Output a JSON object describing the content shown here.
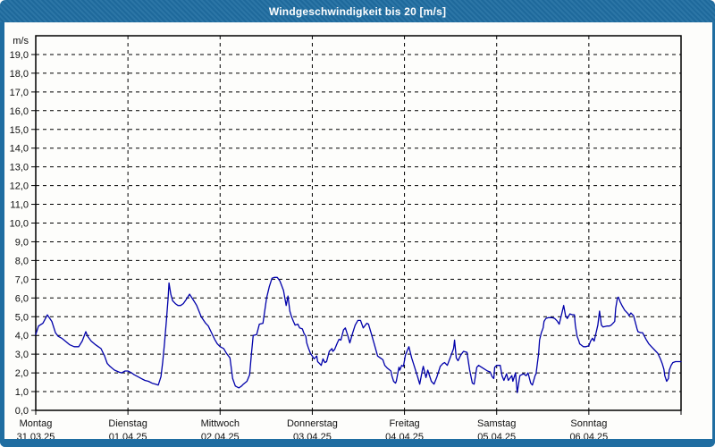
{
  "window": {
    "title": "Windgeschwindigkeit bis 20 [m/s]"
  },
  "colors": {
    "frame_blue": "#1f6da1",
    "line_blue": "#0000aa",
    "grid_black": "#000000",
    "plot_background": "#fdfdfb",
    "title_text": "#ffffff"
  },
  "y_axis": {
    "unit_label": "m/s",
    "tick_labels": [
      "19,0",
      "18,0",
      "17,0",
      "16,0",
      "15,0",
      "14,0",
      "13,0",
      "12,0",
      "11,0",
      "10,0",
      "9,0",
      "8,0",
      "7,0",
      "6,0",
      "5,0",
      "4,0",
      "3,0",
      "2,0",
      "1,0",
      "0,0"
    ]
  },
  "x_axis": {
    "days": [
      {
        "name": "Montag",
        "date": "31.03.25"
      },
      {
        "name": "Dienstag",
        "date": "01.04.25"
      },
      {
        "name": "Mittwoch",
        "date": "02.04.25"
      },
      {
        "name": "Donnerstag",
        "date": "03.04.25"
      },
      {
        "name": "Freitag",
        "date": "04.04.25"
      },
      {
        "name": "Samstag",
        "date": "05.04.25"
      },
      {
        "name": "Sonntag",
        "date": "06.04.25"
      }
    ]
  },
  "chart_data": {
    "type": "line",
    "title": "Windgeschwindigkeit bis 20 [m/s]",
    "xlabel": "",
    "ylabel": "m/s",
    "ylim": [
      0,
      20
    ],
    "y_gridline_step": 1,
    "xlim_days": [
      0,
      7
    ],
    "x_unit": "days since 31.03.25 00:00 (Montag)",
    "grid": "dashed",
    "legend": "none",
    "series": [
      {
        "name": "Windgeschwindigkeit",
        "color": "#0000aa",
        "points": [
          [
            0,
            4.05
          ],
          [
            0.03,
            4.5
          ],
          [
            0.078,
            4.65
          ],
          [
            0.126,
            5.1
          ],
          [
            0.175,
            4.75
          ],
          [
            0.213,
            4.15
          ],
          [
            0.243,
            3.95
          ],
          [
            0.281,
            3.85
          ],
          [
            0.32,
            3.7
          ],
          [
            0.369,
            3.5
          ],
          [
            0.417,
            3.4
          ],
          [
            0.466,
            3.4
          ],
          [
            0.504,
            3.7
          ],
          [
            0.543,
            4.2
          ],
          [
            0.563,
            3.95
          ],
          [
            0.601,
            3.7
          ],
          [
            0.65,
            3.5
          ],
          [
            0.679,
            3.4
          ],
          [
            0.708,
            3.3
          ],
          [
            0.747,
            2.9
          ],
          [
            0.776,
            2.5
          ],
          [
            0.805,
            2.35
          ],
          [
            0.854,
            2.15
          ],
          [
            0.902,
            2.05
          ],
          [
            0.931,
            2.0
          ],
          [
            0.97,
            2.1
          ],
          [
            1.0,
            2.1
          ],
          [
            1.039,
            2.0
          ],
          [
            1.068,
            1.9
          ],
          [
            1.107,
            1.8
          ],
          [
            1.145,
            1.7
          ],
          [
            1.184,
            1.6
          ],
          [
            1.223,
            1.55
          ],
          [
            1.261,
            1.45
          ],
          [
            1.3,
            1.4
          ],
          [
            1.329,
            1.35
          ],
          [
            1.358,
            1.8
          ],
          [
            1.378,
            2.6
          ],
          [
            1.397,
            3.6
          ],
          [
            1.417,
            4.8
          ],
          [
            1.436,
            6.0
          ],
          [
            1.446,
            6.8
          ],
          [
            1.465,
            6.2
          ],
          [
            1.485,
            5.85
          ],
          [
            1.514,
            5.7
          ],
          [
            1.543,
            5.6
          ],
          [
            1.572,
            5.6
          ],
          [
            1.601,
            5.7
          ],
          [
            1.63,
            5.9
          ],
          [
            1.669,
            6.2
          ],
          [
            1.708,
            5.9
          ],
          [
            1.746,
            5.6
          ],
          [
            1.795,
            5.0
          ],
          [
            1.843,
            4.65
          ],
          [
            1.872,
            4.5
          ],
          [
            1.901,
            4.2
          ],
          [
            1.94,
            3.8
          ],
          [
            1.969,
            3.55
          ],
          [
            2.0,
            3.4
          ],
          [
            2.039,
            3.3
          ],
          [
            2.068,
            3.05
          ],
          [
            2.107,
            2.8
          ],
          [
            2.136,
            1.7
          ],
          [
            2.165,
            1.3
          ],
          [
            2.204,
            1.2
          ],
          [
            2.233,
            1.3
          ],
          [
            2.252,
            1.4
          ],
          [
            2.291,
            1.55
          ],
          [
            2.32,
            1.9
          ],
          [
            2.339,
            3.0
          ],
          [
            2.359,
            4.0
          ],
          [
            2.397,
            4.05
          ],
          [
            2.426,
            4.6
          ],
          [
            2.465,
            4.65
          ],
          [
            2.504,
            6.0
          ],
          [
            2.533,
            6.6
          ],
          [
            2.562,
            7.05
          ],
          [
            2.591,
            7.1
          ],
          [
            2.62,
            7.1
          ],
          [
            2.649,
            6.9
          ],
          [
            2.688,
            6.4
          ],
          [
            2.717,
            5.6
          ],
          [
            2.736,
            6.1
          ],
          [
            2.756,
            5.3
          ],
          [
            2.775,
            5.0
          ],
          [
            2.795,
            4.75
          ],
          [
            2.814,
            4.55
          ],
          [
            2.843,
            4.6
          ],
          [
            2.863,
            4.4
          ],
          [
            2.892,
            4.35
          ],
          [
            2.911,
            4.1
          ],
          [
            2.93,
            3.95
          ],
          [
            2.94,
            3.6
          ],
          [
            2.96,
            3.3
          ],
          [
            2.979,
            3.05
          ],
          [
            3.0,
            2.9
          ],
          [
            3.019,
            2.75
          ],
          [
            3.048,
            2.9
          ],
          [
            3.058,
            2.6
          ],
          [
            3.078,
            2.5
          ],
          [
            3.097,
            2.4
          ],
          [
            3.116,
            2.75
          ],
          [
            3.136,
            2.55
          ],
          [
            3.155,
            2.6
          ],
          [
            3.184,
            3.15
          ],
          [
            3.213,
            3.3
          ],
          [
            3.223,
            3.15
          ],
          [
            3.242,
            3.25
          ],
          [
            3.271,
            3.6
          ],
          [
            3.291,
            3.8
          ],
          [
            3.31,
            3.75
          ],
          [
            3.339,
            4.3
          ],
          [
            3.358,
            4.4
          ],
          [
            3.388,
            3.95
          ],
          [
            3.407,
            3.6
          ],
          [
            3.436,
            4.1
          ],
          [
            3.465,
            4.55
          ],
          [
            3.494,
            4.8
          ],
          [
            3.523,
            4.8
          ],
          [
            3.552,
            4.4
          ],
          [
            3.591,
            4.65
          ],
          [
            3.61,
            4.6
          ],
          [
            3.64,
            4.1
          ],
          [
            3.669,
            3.6
          ],
          [
            3.708,
            2.9
          ],
          [
            3.737,
            2.8
          ],
          [
            3.766,
            2.7
          ],
          [
            3.786,
            2.4
          ],
          [
            3.815,
            2.25
          ],
          [
            3.853,
            2.1
          ],
          [
            3.863,
            1.85
          ],
          [
            3.882,
            1.55
          ],
          [
            3.902,
            1.45
          ],
          [
            3.911,
            1.55
          ],
          [
            3.94,
            2.3
          ],
          [
            3.95,
            2.15
          ],
          [
            3.969,
            2.4
          ],
          [
            3.989,
            2.35
          ],
          [
            4.01,
            2.95
          ],
          [
            4.048,
            3.4
          ],
          [
            4.078,
            2.8
          ],
          [
            4.107,
            2.35
          ],
          [
            4.145,
            1.75
          ],
          [
            4.165,
            1.4
          ],
          [
            4.194,
            2.15
          ],
          [
            4.204,
            2.35
          ],
          [
            4.233,
            1.75
          ],
          [
            4.252,
            2.15
          ],
          [
            4.291,
            1.55
          ],
          [
            4.32,
            1.4
          ],
          [
            4.349,
            1.75
          ],
          [
            4.388,
            2.35
          ],
          [
            4.417,
            2.5
          ],
          [
            4.436,
            2.55
          ],
          [
            4.465,
            2.4
          ],
          [
            4.514,
            3.05
          ],
          [
            4.533,
            3.3
          ],
          [
            4.543,
            3.75
          ],
          [
            4.562,
            2.8
          ],
          [
            4.581,
            2.65
          ],
          [
            4.61,
            2.95
          ],
          [
            4.64,
            3.15
          ],
          [
            4.678,
            3.1
          ],
          [
            4.707,
            2.15
          ],
          [
            4.736,
            1.45
          ],
          [
            4.756,
            1.4
          ],
          [
            4.785,
            2.3
          ],
          [
            4.804,
            2.4
          ],
          [
            4.853,
            2.25
          ],
          [
            4.901,
            2.1
          ],
          [
            4.93,
            2.05
          ],
          [
            4.95,
            1.8
          ],
          [
            4.969,
            1.7
          ],
          [
            4.979,
            2.3
          ],
          [
            5.0,
            2.4
          ],
          [
            5.039,
            2.4
          ],
          [
            5.058,
            1.85
          ],
          [
            5.078,
            1.6
          ],
          [
            5.107,
            1.95
          ],
          [
            5.126,
            1.6
          ],
          [
            5.165,
            1.85
          ],
          [
            5.175,
            1.55
          ],
          [
            5.204,
            2.0
          ],
          [
            5.223,
            0.95
          ],
          [
            5.252,
            1.85
          ],
          [
            5.291,
            1.95
          ],
          [
            5.32,
            1.85
          ],
          [
            5.34,
            2.0
          ],
          [
            5.369,
            1.45
          ],
          [
            5.388,
            1.35
          ],
          [
            5.417,
            1.85
          ],
          [
            5.427,
            1.95
          ],
          [
            5.456,
            3.05
          ],
          [
            5.465,
            3.75
          ],
          [
            5.485,
            4.15
          ],
          [
            5.504,
            4.4
          ],
          [
            5.514,
            4.75
          ],
          [
            5.533,
            4.9
          ],
          [
            5.562,
            4.95
          ],
          [
            5.601,
            4.95
          ],
          [
            5.63,
            4.9
          ],
          [
            5.65,
            4.8
          ],
          [
            5.659,
            4.75
          ],
          [
            5.679,
            4.6
          ],
          [
            5.708,
            5.2
          ],
          [
            5.727,
            5.6
          ],
          [
            5.747,
            5.05
          ],
          [
            5.766,
            4.9
          ],
          [
            5.795,
            5.15
          ],
          [
            5.824,
            5.1
          ],
          [
            5.843,
            5.1
          ],
          [
            5.853,
            4.55
          ],
          [
            5.872,
            3.95
          ],
          [
            5.892,
            3.7
          ],
          [
            5.901,
            3.55
          ],
          [
            5.94,
            3.4
          ],
          [
            5.969,
            3.4
          ],
          [
            6.0,
            3.45
          ],
          [
            6.019,
            3.7
          ],
          [
            6.039,
            3.85
          ],
          [
            6.058,
            3.7
          ],
          [
            6.097,
            4.55
          ],
          [
            6.116,
            5.3
          ],
          [
            6.136,
            4.55
          ],
          [
            6.155,
            4.45
          ],
          [
            6.194,
            4.5
          ],
          [
            6.223,
            4.5
          ],
          [
            6.242,
            4.55
          ],
          [
            6.262,
            4.65
          ],
          [
            6.281,
            4.75
          ],
          [
            6.291,
            5.45
          ],
          [
            6.31,
            6.0
          ],
          [
            6.32,
            6.05
          ],
          [
            6.339,
            5.8
          ],
          [
            6.359,
            5.6
          ],
          [
            6.388,
            5.35
          ],
          [
            6.427,
            5.15
          ],
          [
            6.436,
            5.05
          ],
          [
            6.456,
            5.2
          ],
          [
            6.485,
            5.05
          ],
          [
            6.523,
            4.35
          ],
          [
            6.533,
            4.2
          ],
          [
            6.562,
            4.15
          ],
          [
            6.582,
            4.15
          ],
          [
            6.62,
            3.8
          ],
          [
            6.65,
            3.55
          ],
          [
            6.679,
            3.4
          ],
          [
            6.718,
            3.2
          ],
          [
            6.747,
            3.05
          ],
          [
            6.776,
            2.75
          ],
          [
            6.795,
            2.5
          ],
          [
            6.814,
            2.2
          ],
          [
            6.824,
            1.85
          ],
          [
            6.844,
            1.55
          ],
          [
            6.863,
            1.7
          ],
          [
            6.873,
            2.15
          ],
          [
            6.892,
            2.4
          ],
          [
            6.911,
            2.55
          ],
          [
            6.94,
            2.6
          ],
          [
            6.969,
            2.6
          ],
          [
            7.0,
            2.6
          ]
        ]
      }
    ]
  }
}
